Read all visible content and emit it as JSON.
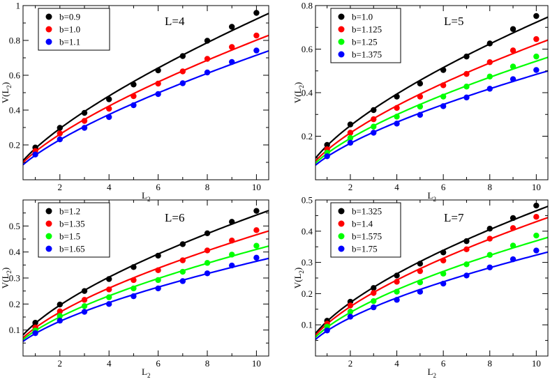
{
  "chart_data": [
    {
      "type": "line",
      "title": "L=4",
      "xlabel": "L",
      "xlabel_sub": "2",
      "ylabel": "V(L",
      "ylabel_sub": "2",
      "ylabel_close": ")",
      "xlim": [
        0.5,
        10.5
      ],
      "ylim": [
        0,
        1.0
      ],
      "xticks": [
        2,
        4,
        6,
        8,
        10
      ],
      "xtick_labels": [
        "2",
        "4",
        "6",
        "8",
        "10"
      ],
      "yticks": [
        0,
        0.2,
        0.4,
        0.6,
        0.8,
        1.0
      ],
      "ytick_labels": [
        "",
        "0.2",
        "0.4",
        "0.6",
        "0.8",
        "1"
      ],
      "legend_position": "top-left",
      "series": [
        {
          "name": "b=0.9",
          "color": "#000000",
          "x": [
            1,
            2,
            3,
            4,
            5,
            6,
            7,
            8,
            9,
            10
          ],
          "y": [
            0.185,
            0.298,
            0.384,
            0.462,
            0.547,
            0.628,
            0.71,
            0.798,
            0.878,
            0.958
          ]
        },
        {
          "name": "b=1.0",
          "color": "#ff0000",
          "x": [
            1,
            2,
            3,
            4,
            5,
            6,
            7,
            8,
            9,
            10
          ],
          "y": [
            0.165,
            0.266,
            0.338,
            0.408,
            0.48,
            0.552,
            0.622,
            0.694,
            0.762,
            0.828
          ]
        },
        {
          "name": "b=1.1",
          "color": "#0000ff",
          "x": [
            1,
            2,
            3,
            4,
            5,
            6,
            7,
            8,
            9,
            10
          ],
          "y": [
            0.145,
            0.232,
            0.298,
            0.36,
            0.428,
            0.492,
            0.554,
            0.616,
            0.676,
            0.742
          ]
        }
      ]
    },
    {
      "type": "line",
      "title": "L=5",
      "xlabel": "L",
      "xlabel_sub": "2",
      "ylabel": "V(L",
      "ylabel_sub": "2",
      "ylabel_close": ")",
      "xlim": [
        0.5,
        10.5
      ],
      "ylim": [
        0,
        0.8
      ],
      "xticks": [
        2,
        4,
        6,
        8,
        10
      ],
      "xtick_labels": [
        "2",
        "4",
        "6",
        "8",
        "10"
      ],
      "yticks": [
        0,
        0.2,
        0.4,
        0.6,
        0.8
      ],
      "ytick_labels": [
        "",
        "0.2",
        "0.4",
        "0.6",
        "0.8"
      ],
      "legend_position": "top-left",
      "series": [
        {
          "name": "b=1.0",
          "color": "#000000",
          "x": [
            1,
            2,
            3,
            4,
            5,
            6,
            7,
            8,
            9,
            10
          ],
          "y": [
            0.16,
            0.254,
            0.32,
            0.382,
            0.442,
            0.504,
            0.566,
            0.626,
            0.692,
            0.752
          ]
        },
        {
          "name": "b=1.125",
          "color": "#ff0000",
          "x": [
            1,
            2,
            3,
            4,
            5,
            6,
            7,
            8,
            9,
            10
          ],
          "y": [
            0.14,
            0.216,
            0.278,
            0.33,
            0.382,
            0.434,
            0.486,
            0.54,
            0.594,
            0.646
          ]
        },
        {
          "name": "b=1.25",
          "color": "#00ff00",
          "x": [
            1,
            2,
            3,
            4,
            5,
            6,
            7,
            8,
            9,
            10
          ],
          "y": [
            0.124,
            0.192,
            0.244,
            0.29,
            0.336,
            0.382,
            0.428,
            0.474,
            0.52,
            0.566
          ]
        },
        {
          "name": "b=1.375",
          "color": "#0000ff",
          "x": [
            1,
            2,
            3,
            4,
            5,
            6,
            7,
            8,
            9,
            10
          ],
          "y": [
            0.108,
            0.17,
            0.216,
            0.258,
            0.298,
            0.338,
            0.378,
            0.418,
            0.462,
            0.504
          ]
        }
      ]
    },
    {
      "type": "line",
      "title": "L=6",
      "xlabel": "L",
      "xlabel_sub": "2",
      "ylabel": "V(L",
      "ylabel_sub": "2",
      "ylabel_close": ")",
      "xlim": [
        0.5,
        10.5
      ],
      "ylim": [
        0,
        0.6
      ],
      "xticks": [
        2,
        4,
        6,
        8,
        10
      ],
      "xtick_labels": [
        "2",
        "4",
        "6",
        "8",
        "10"
      ],
      "yticks": [
        0,
        0.1,
        0.2,
        0.3,
        0.4,
        0.5
      ],
      "ytick_labels": [
        "",
        "0.1",
        "0.2",
        "0.3",
        "0.4",
        "0.5"
      ],
      "legend_position": "top-left",
      "series": [
        {
          "name": "b=1.2",
          "color": "#000000",
          "x": [
            1,
            2,
            3,
            4,
            5,
            6,
            7,
            8,
            9,
            10
          ],
          "y": [
            0.128,
            0.198,
            0.25,
            0.296,
            0.342,
            0.386,
            0.43,
            0.472,
            0.516,
            0.558
          ]
        },
        {
          "name": "b=1.35",
          "color": "#ff0000",
          "x": [
            1,
            2,
            3,
            4,
            5,
            6,
            7,
            8,
            9,
            10
          ],
          "y": [
            0.11,
            0.172,
            0.216,
            0.256,
            0.292,
            0.33,
            0.368,
            0.406,
            0.444,
            0.484
          ]
        },
        {
          "name": "b=1.5",
          "color": "#00ff00",
          "x": [
            1,
            2,
            3,
            4,
            5,
            6,
            7,
            8,
            9,
            10
          ],
          "y": [
            0.098,
            0.154,
            0.192,
            0.226,
            0.26,
            0.292,
            0.324,
            0.358,
            0.39,
            0.424
          ]
        },
        {
          "name": "b=1.65",
          "color": "#0000ff",
          "x": [
            1,
            2,
            3,
            4,
            5,
            6,
            7,
            8,
            9,
            10
          ],
          "y": [
            0.088,
            0.136,
            0.17,
            0.2,
            0.23,
            0.26,
            0.288,
            0.318,
            0.348,
            0.378
          ]
        }
      ]
    },
    {
      "type": "line",
      "title": "L=7",
      "xlabel": "L",
      "xlabel_sub": "2",
      "ylabel": "V(L",
      "ylabel_sub": "2",
      "ylabel_close": ")",
      "xlim": [
        0.5,
        10.5
      ],
      "ylim": [
        0,
        0.5
      ],
      "xticks": [
        2,
        4,
        6,
        8,
        10
      ],
      "xtick_labels": [
        "2",
        "4",
        "6",
        "8",
        "10"
      ],
      "yticks": [
        0,
        0.1,
        0.2,
        0.3,
        0.4,
        0.5
      ],
      "ytick_labels": [
        "",
        "0.1",
        "0.2",
        "0.3",
        "0.4",
        "0.5"
      ],
      "legend_position": "top-left",
      "series": [
        {
          "name": "b=1.325",
          "color": "#000000",
          "x": [
            1,
            2,
            3,
            4,
            5,
            6,
            7,
            8,
            9,
            10
          ],
          "y": [
            0.113,
            0.174,
            0.218,
            0.258,
            0.296,
            0.332,
            0.368,
            0.408,
            0.442,
            0.482
          ]
        },
        {
          "name": "b=1.4",
          "color": "#ff0000",
          "x": [
            1,
            2,
            3,
            4,
            5,
            6,
            7,
            8,
            9,
            10
          ],
          "y": [
            0.104,
            0.162,
            0.202,
            0.238,
            0.272,
            0.306,
            0.342,
            0.376,
            0.41,
            0.446
          ]
        },
        {
          "name": "b=1.575",
          "color": "#00ff00",
          "x": [
            1,
            2,
            3,
            4,
            5,
            6,
            7,
            8,
            9,
            10
          ],
          "y": [
            0.094,
            0.142,
            0.176,
            0.206,
            0.236,
            0.264,
            0.294,
            0.324,
            0.354,
            0.386
          ]
        },
        {
          "name": "b=1.75",
          "color": "#0000ff",
          "x": [
            1,
            2,
            3,
            4,
            5,
            6,
            7,
            8,
            9,
            10
          ],
          "y": [
            0.082,
            0.126,
            0.156,
            0.18,
            0.206,
            0.232,
            0.258,
            0.284,
            0.31,
            0.338
          ]
        }
      ]
    }
  ]
}
